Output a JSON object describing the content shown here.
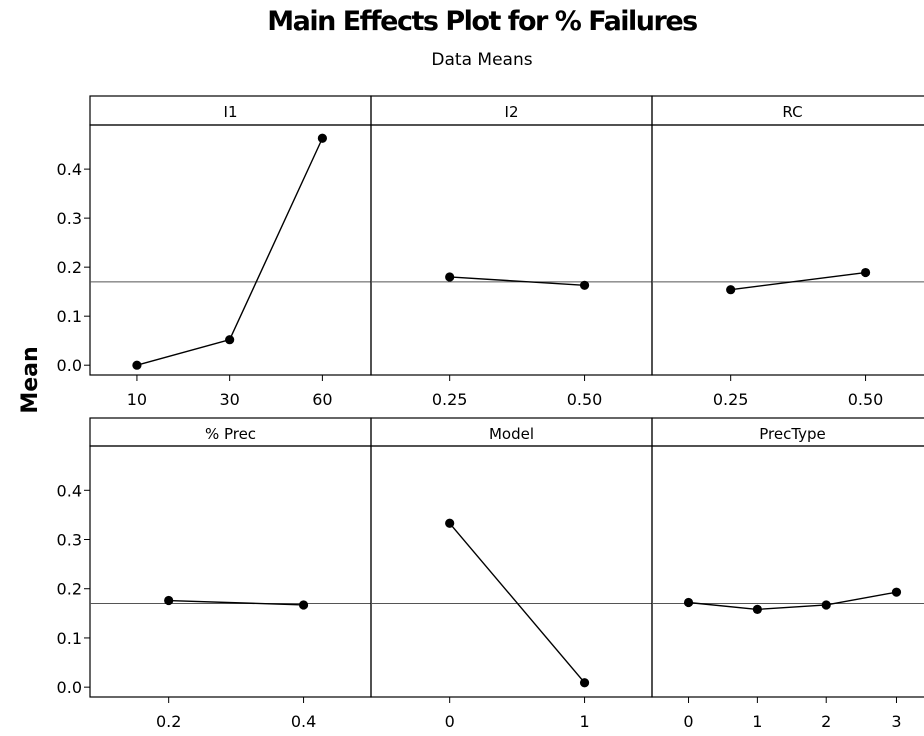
{
  "title": "Main Effects Plot for % Failures",
  "subtitle": "Data Means",
  "y_axis_label": "Mean",
  "reference_mean": 0.17,
  "chart_data": [
    {
      "type": "line",
      "panel": "I1",
      "categories": [
        "10",
        "30",
        "60"
      ],
      "values": [
        0.0,
        0.052,
        0.463
      ],
      "ylabel": "Mean",
      "ylim": [
        -0.02,
        0.49
      ],
      "yticks": [
        "0.0",
        "0.1",
        "0.2",
        "0.3",
        "0.4"
      ]
    },
    {
      "type": "line",
      "panel": "I2",
      "categories": [
        "0.25",
        "0.50"
      ],
      "values": [
        0.18,
        0.163
      ],
      "ylim": [
        -0.02,
        0.49
      ]
    },
    {
      "type": "line",
      "panel": "RC",
      "categories": [
        "0.25",
        "0.50"
      ],
      "values": [
        0.154,
        0.189
      ],
      "ylim": [
        -0.02,
        0.49
      ]
    },
    {
      "type": "line",
      "panel": "% Prec",
      "categories": [
        "0.2",
        "0.4"
      ],
      "values": [
        0.176,
        0.167
      ],
      "ylabel": "Mean",
      "ylim": [
        -0.02,
        0.49
      ],
      "yticks": [
        "0.0",
        "0.1",
        "0.2",
        "0.3",
        "0.4"
      ]
    },
    {
      "type": "line",
      "panel": "Model",
      "categories": [
        "0",
        "1"
      ],
      "values": [
        0.333,
        0.009
      ],
      "ylim": [
        -0.02,
        0.49
      ]
    },
    {
      "type": "line",
      "panel": "PrecType",
      "categories": [
        "0",
        "1",
        "2",
        "3"
      ],
      "values": [
        0.172,
        0.158,
        0.167,
        0.193
      ],
      "ylim": [
        -0.02,
        0.49
      ]
    }
  ]
}
